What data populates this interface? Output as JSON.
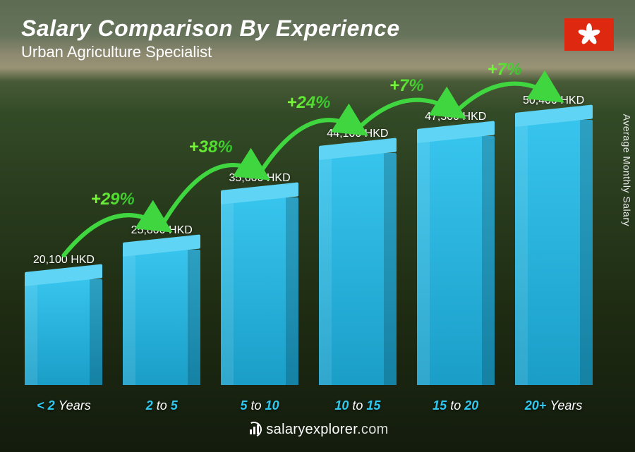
{
  "header": {
    "title": "Salary Comparison By Experience",
    "subtitle": "Urban Agriculture Specialist",
    "flag_bg": "#de2910",
    "flag_petal_color": "#ffffff"
  },
  "axis": {
    "y_label": "Average Monthly Salary",
    "y_label_color": "#e8e8e8"
  },
  "chart": {
    "type": "bar",
    "currency": "HKD",
    "max_value": 50400,
    "bar_gradient_top": "#37c4ed",
    "bar_gradient_bottom": "#1a9ec8",
    "bar_cap_color": "#5fd4f5",
    "value_label_color": "#ffffff",
    "xlabel_number_color": "#2fc8f0",
    "xlabel_word_color": "#ffffff",
    "pct_gradient_from": "#7fff3a",
    "pct_gradient_to": "#2fbf2a",
    "arrow_color": "#3fd63f",
    "bars": [
      {
        "value": 20100,
        "label": "20,100 HKD",
        "x_num_a": "< 2",
        "x_word": "Years",
        "x_num_b": ""
      },
      {
        "value": 25800,
        "label": "25,800 HKD",
        "x_num_a": "2",
        "x_word": "to",
        "x_num_b": "5",
        "pct": "+29%"
      },
      {
        "value": 35600,
        "label": "35,600 HKD",
        "x_num_a": "5",
        "x_word": "to",
        "x_num_b": "10",
        "pct": "+38%"
      },
      {
        "value": 44100,
        "label": "44,100 HKD",
        "x_num_a": "10",
        "x_word": "to",
        "x_num_b": "15",
        "pct": "+24%"
      },
      {
        "value": 47300,
        "label": "47,300 HKD",
        "x_num_a": "15",
        "x_word": "to",
        "x_num_b": "20",
        "pct": "+7%"
      },
      {
        "value": 50400,
        "label": "50,400 HKD",
        "x_num_a": "20+",
        "x_word": "Years",
        "x_num_b": "",
        "pct": "+7%"
      }
    ]
  },
  "footer": {
    "site": "salaryexplorer",
    "tld": ".com"
  }
}
